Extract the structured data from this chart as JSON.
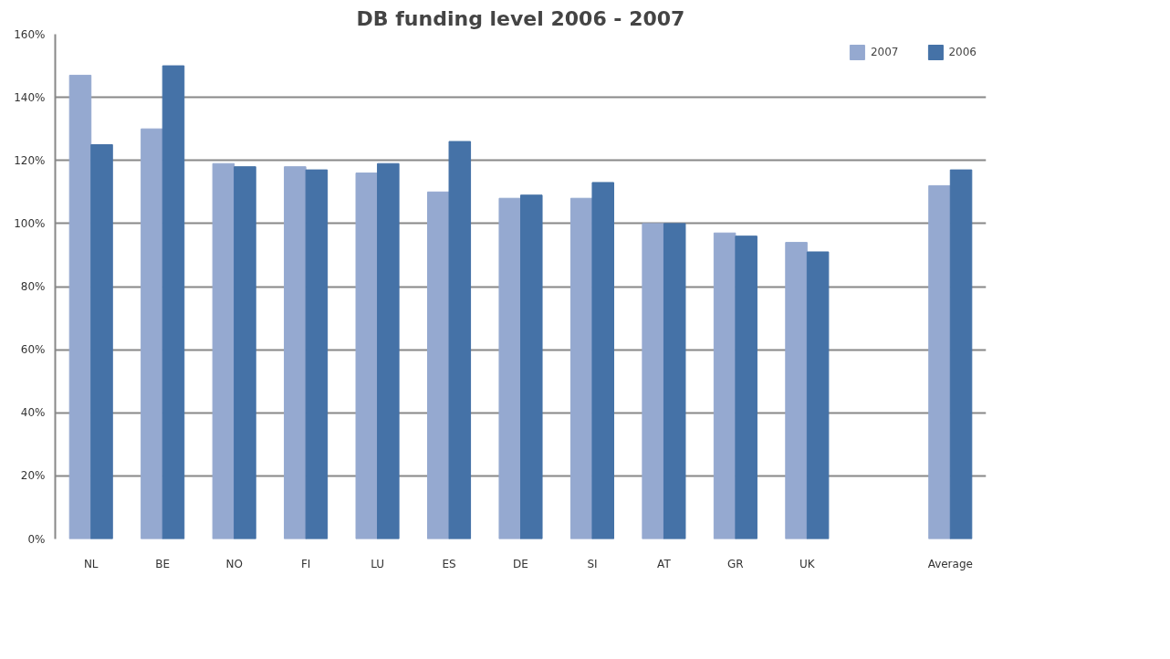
{
  "chart_data": {
    "type": "bar",
    "title": "DB funding level 2006 - 2007",
    "categories": [
      "NL",
      "BE",
      "NO",
      "FI",
      "LU",
      "ES",
      "DE",
      "SI",
      "AT",
      "GR",
      "UK",
      null,
      "Average"
    ],
    "series": [
      {
        "name": "2007",
        "color": "#95a9d0",
        "values": [
          147,
          130,
          119,
          118,
          116,
          110,
          108,
          108,
          100,
          97,
          94,
          null,
          112
        ]
      },
      {
        "name": "2006",
        "color": "#4572a7",
        "values": [
          125,
          150,
          118,
          117,
          119,
          126,
          109,
          113,
          100,
          96,
          91,
          null,
          117
        ]
      }
    ],
    "ylim": [
      0,
      160
    ],
    "yticks": [
      {
        "value": 0,
        "label": "0%"
      },
      {
        "value": 20,
        "label": "20%"
      },
      {
        "value": 40,
        "label": "40%"
      },
      {
        "value": 60,
        "label": "60%"
      },
      {
        "value": 80,
        "label": "80%"
      },
      {
        "value": 100,
        "label": "100%"
      },
      {
        "value": 120,
        "label": "120%"
      },
      {
        "value": 140,
        "label": "140%"
      },
      {
        "value": 160,
        "label": "160%"
      }
    ],
    "grid": "y",
    "legend": "top right"
  }
}
